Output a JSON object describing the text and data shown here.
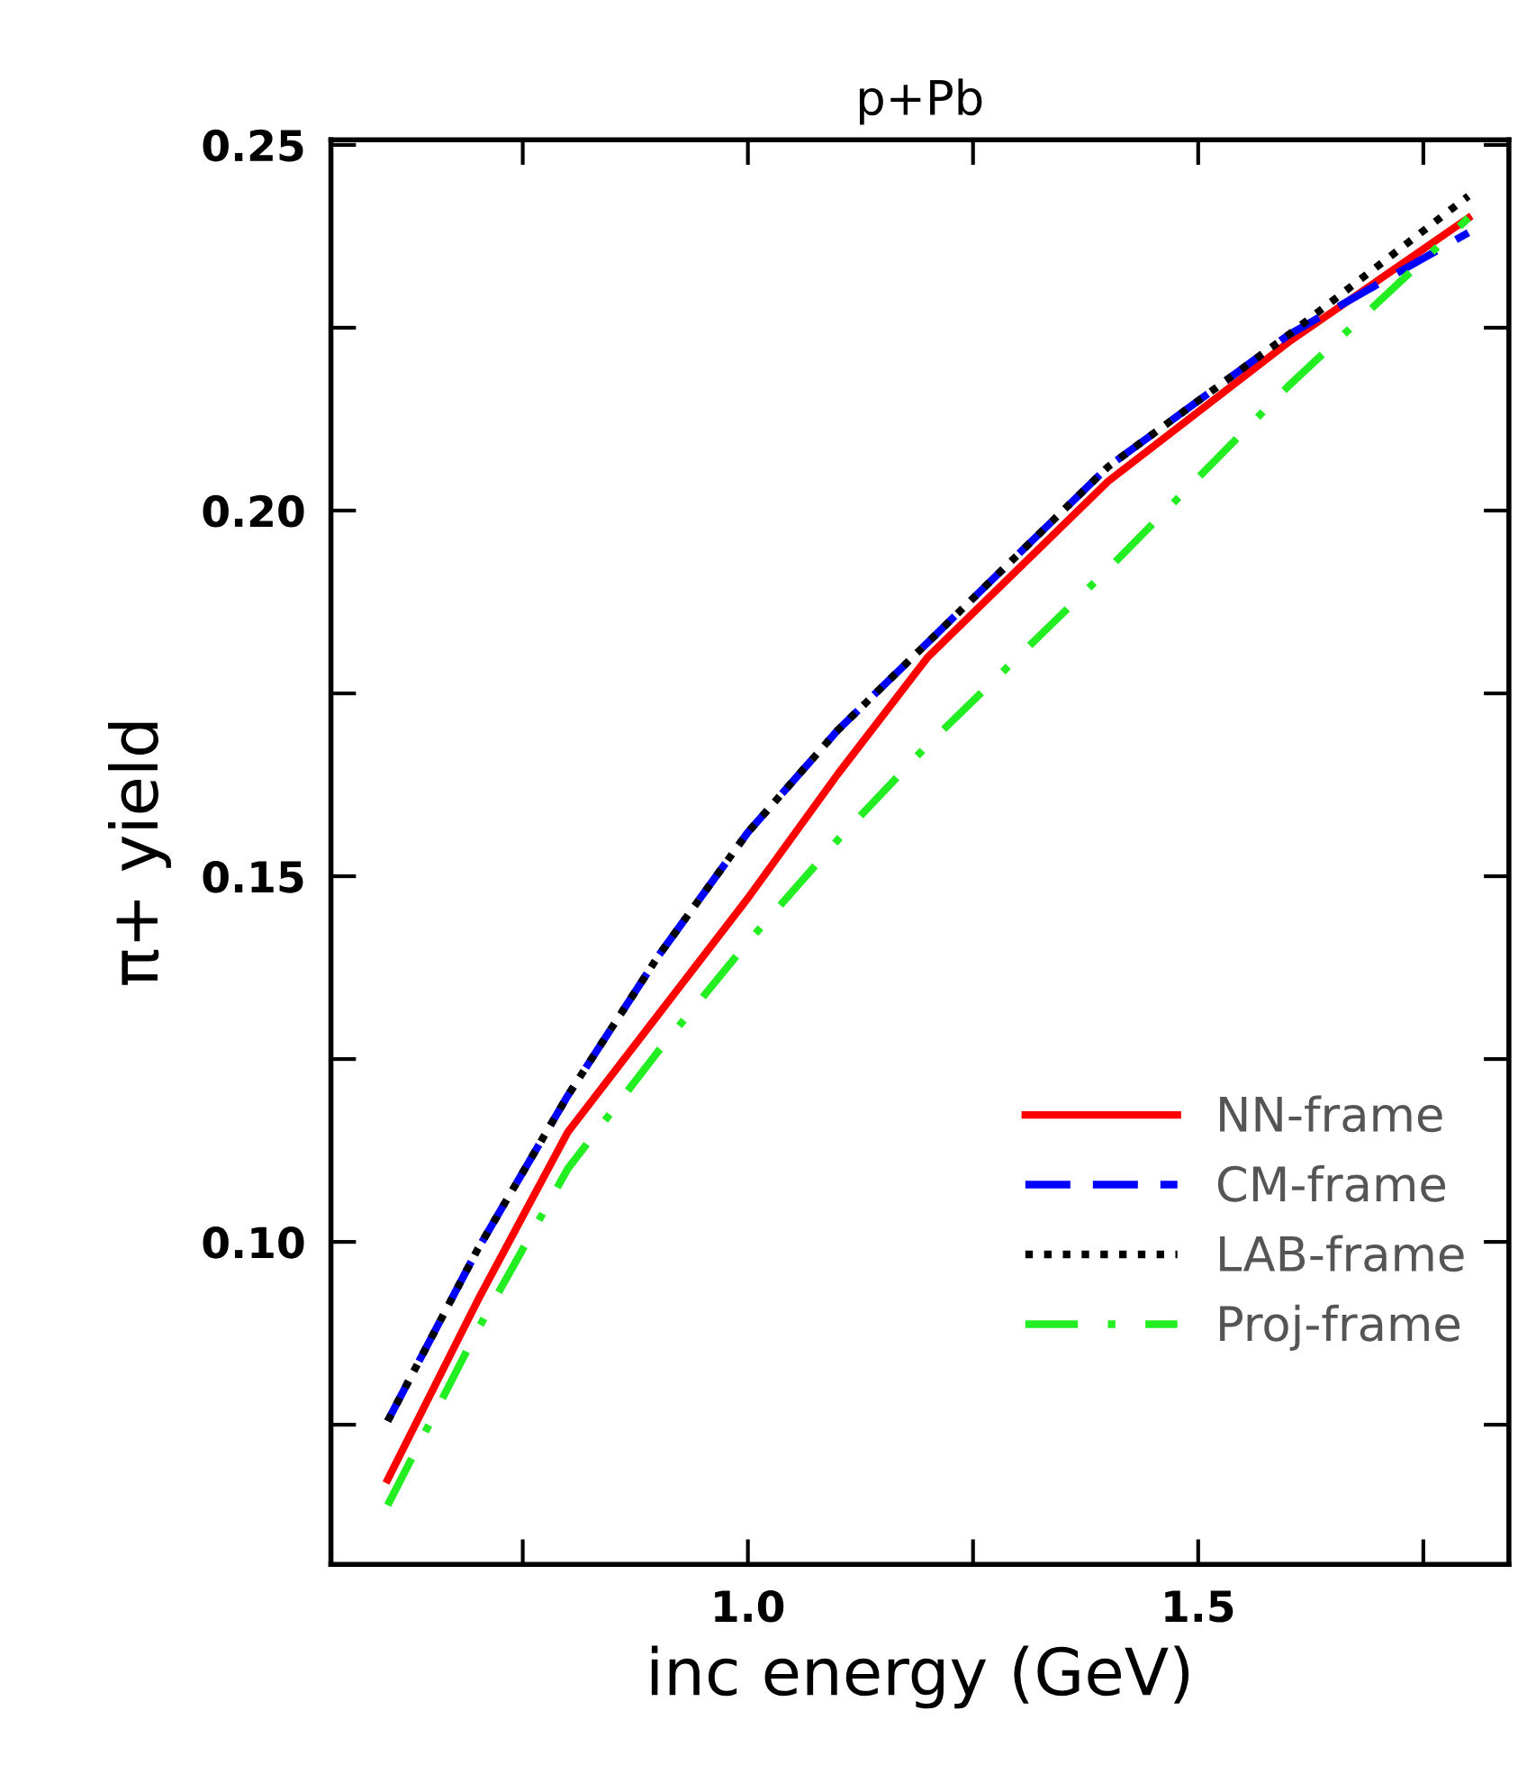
{
  "chart_data": {
    "type": "line",
    "title": "p+Pb",
    "xlabel": "inc energy (GeV)",
    "ylabel": "π+ yield",
    "x": [
      0.6,
      0.7,
      0.8,
      0.9,
      1.0,
      1.1,
      1.2,
      1.4,
      1.6,
      1.8
    ],
    "series": [
      {
        "name": "NN-frame",
        "color": "#ff0000",
        "line_style": "solid",
        "values": [
          0.0675,
          0.092,
          0.115,
          0.131,
          0.147,
          0.164,
          0.18,
          0.204,
          0.223,
          0.24
        ]
      },
      {
        "name": "CM-frame",
        "color": "#0000ff",
        "line_style": "dashed",
        "values": [
          0.0755,
          0.099,
          0.12,
          0.139,
          0.156,
          0.17,
          0.182,
          0.206,
          0.224,
          0.238
        ]
      },
      {
        "name": "LAB-frame",
        "color": "#000000",
        "line_style": "dotted",
        "values": [
          0.0755,
          0.099,
          0.12,
          0.139,
          0.156,
          0.17,
          0.182,
          0.206,
          0.224,
          0.243
        ]
      },
      {
        "name": "Proj-frame",
        "color": "#22ee22",
        "line_style": "dashdot",
        "values": [
          0.064,
          0.088,
          0.11,
          0.126,
          0.141,
          0.155,
          0.168,
          0.192,
          0.217,
          0.24
        ]
      }
    ],
    "xlim": [
      0.537,
      1.845
    ],
    "ylim": [
      0.0559,
      0.2507
    ],
    "xticks": [
      {
        "value": 0.75,
        "label": null
      },
      {
        "value": 1.0,
        "label": "1.0"
      },
      {
        "value": 1.25,
        "label": null
      },
      {
        "value": 1.5,
        "label": "1.5"
      },
      {
        "value": 1.75,
        "label": null
      }
    ],
    "yticks": [
      {
        "value": 0.075,
        "label": null
      },
      {
        "value": 0.1,
        "label": "0.10"
      },
      {
        "value": 0.125,
        "label": null
      },
      {
        "value": 0.15,
        "label": "0.15"
      },
      {
        "value": 0.175,
        "label": null
      },
      {
        "value": 0.2,
        "label": "0.20"
      },
      {
        "value": 0.225,
        "label": null
      },
      {
        "value": 0.25,
        "label": "0.25"
      }
    ],
    "legend": "lower right",
    "grid": false,
    "marker": "none"
  }
}
